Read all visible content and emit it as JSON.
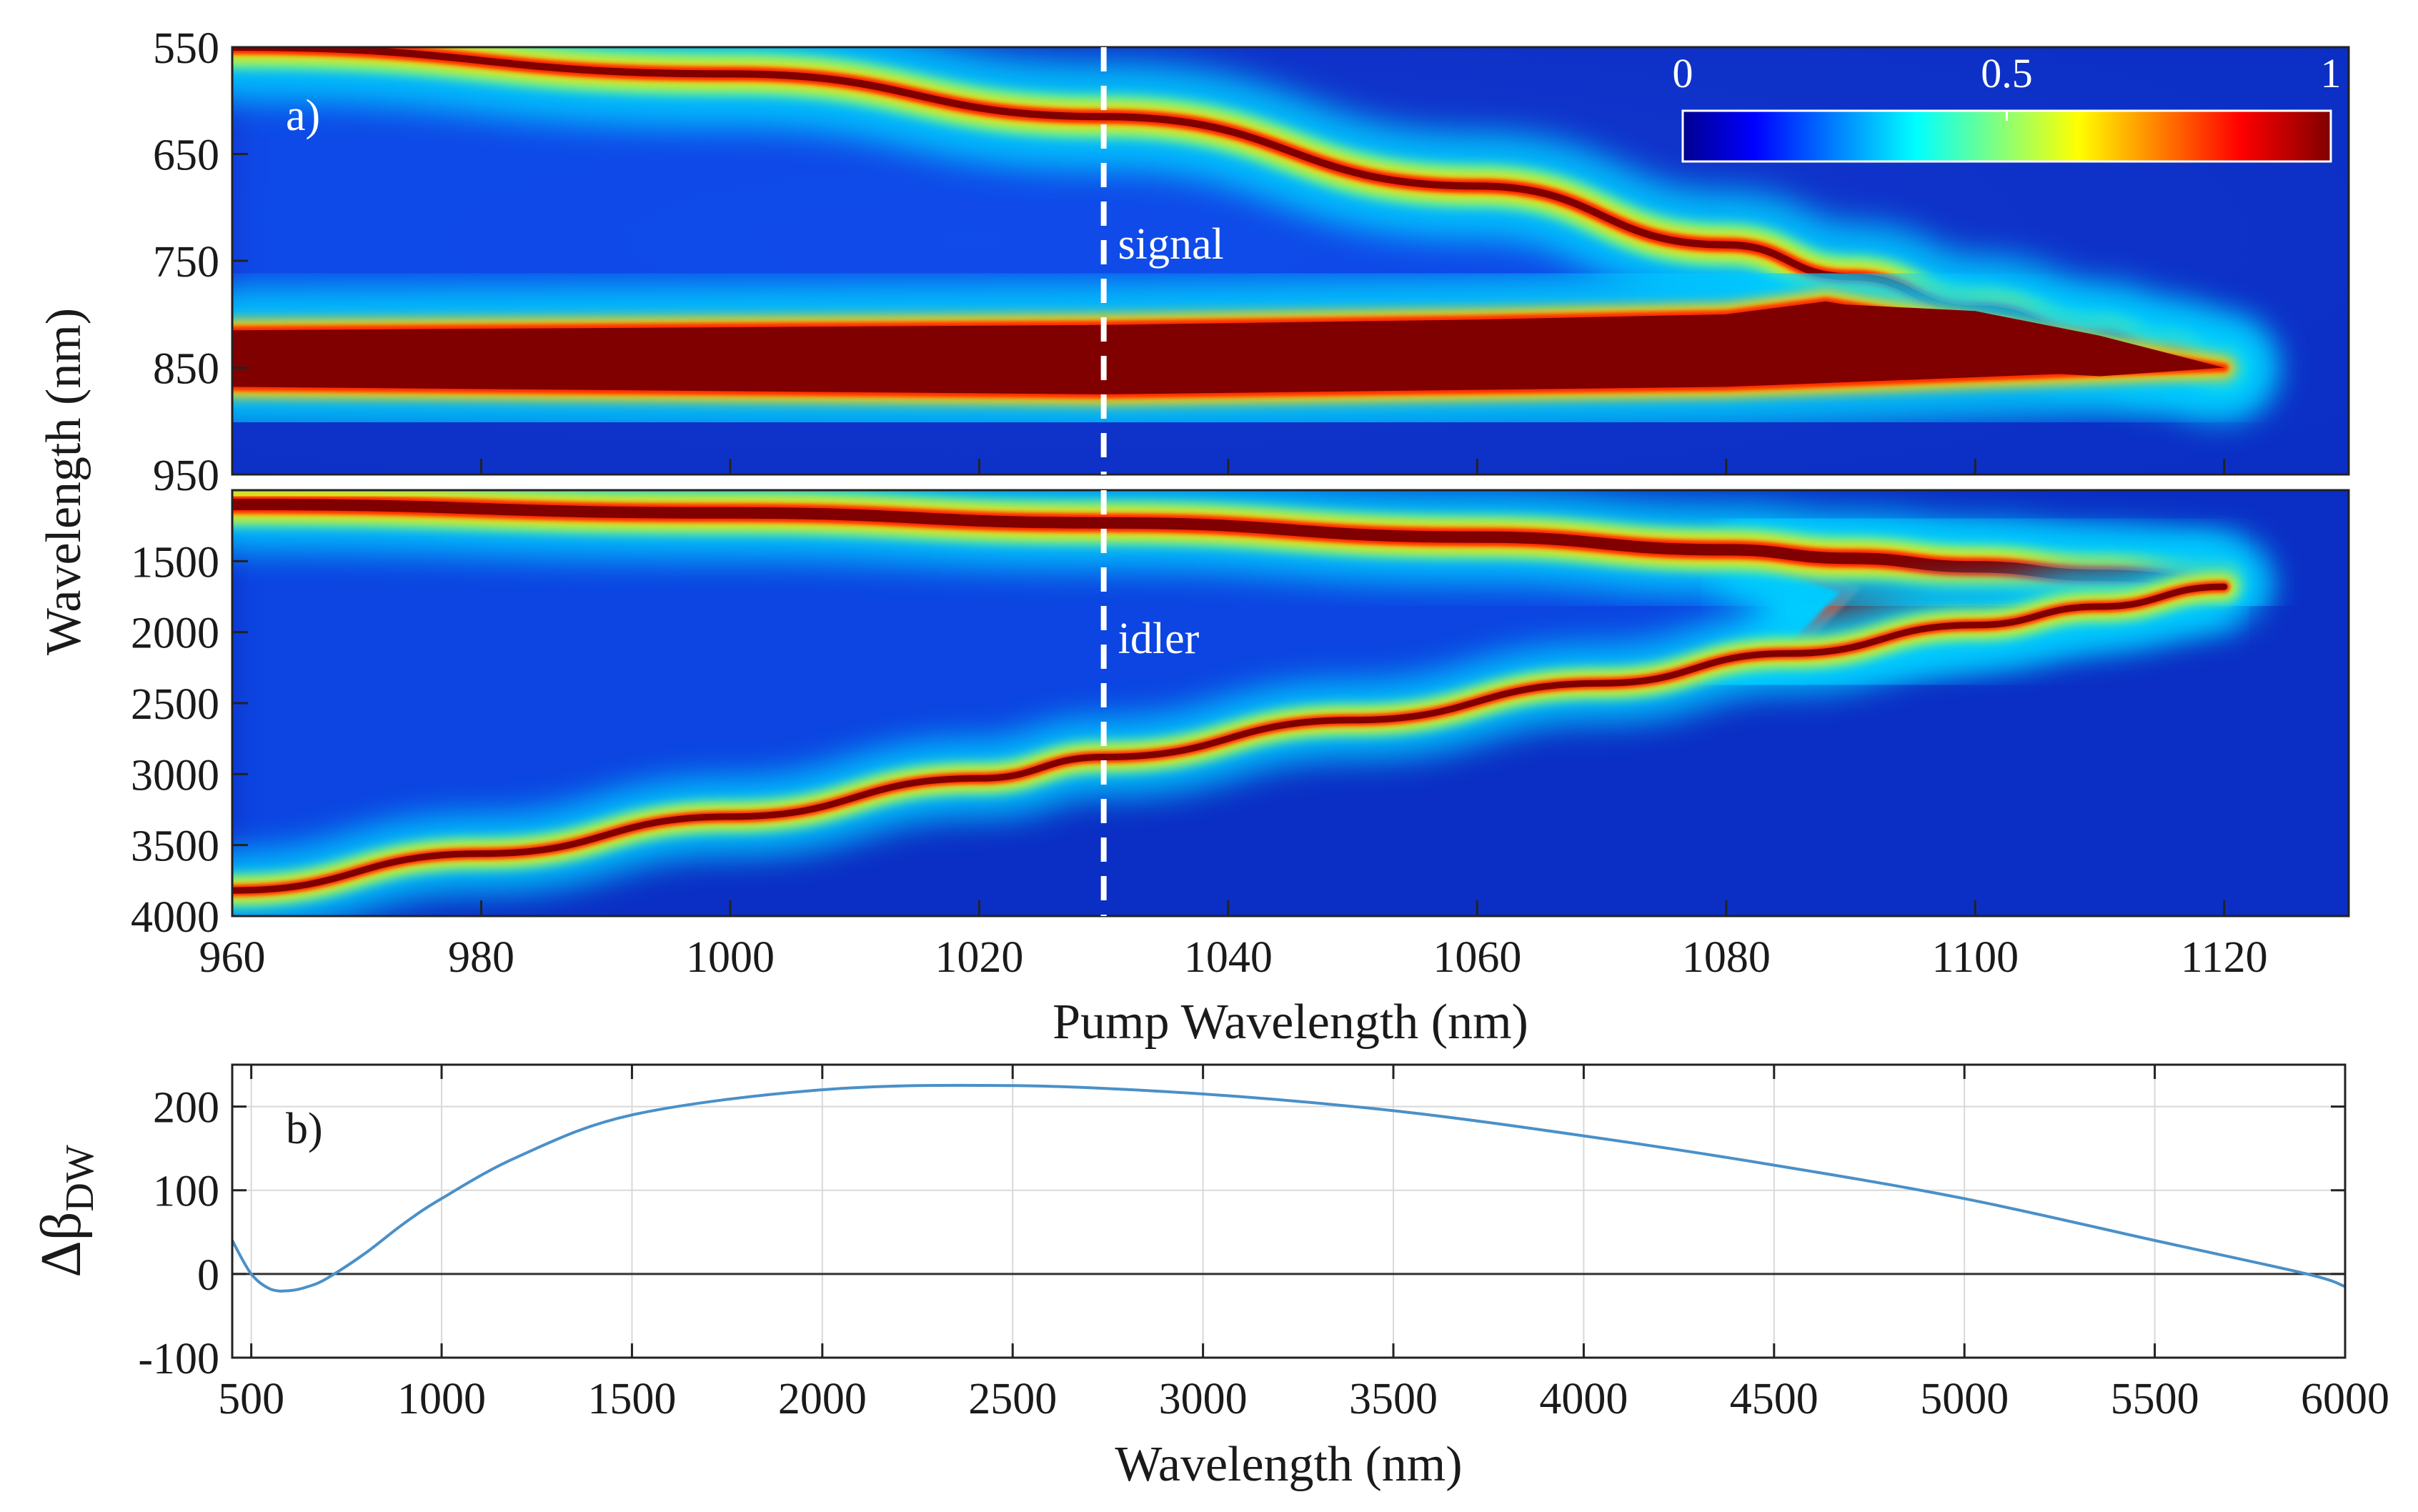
{
  "chart_data": [
    {
      "type": "heatmap",
      "panel_label": "a)",
      "xlabel": "Pump Wavelength (nm)",
      "ylabel": "Wavelength (nm)",
      "xlim": [
        960,
        1130
      ],
      "x_ticks": [
        "960",
        "980",
        "1000",
        "1020",
        "1040",
        "1060",
        "1080",
        "1100",
        "1120"
      ],
      "colorbar": {
        "range": [
          0,
          1
        ],
        "ticks": [
          "0",
          "0.5",
          "1"
        ],
        "colormap": "jet",
        "placement": "top-right"
      },
      "marker_line": {
        "pump_wavelength": 1030,
        "style": "dashed",
        "color": "#ffffff"
      },
      "subplots": [
        {
          "name": "signal",
          "annotation": "signal",
          "ylim": [
            550,
            950
          ],
          "y_ticks": [
            "550",
            "650",
            "750",
            "850",
            "950"
          ],
          "bands": [
            {
              "role": "outer_branch",
              "pump": [
                960,
                1000,
                1030,
                1060,
                1080,
                1090,
                1100,
                1110,
                1115,
                1120
              ],
              "wavelength": [
                550,
                575,
                615,
                680,
                735,
                765,
                795,
                820,
                835,
                850
              ]
            },
            {
              "role": "inner_branch",
              "pump": [
                960,
                1030,
                1060,
                1080,
                1088
              ],
              "wavelength": [
                815,
                810,
                805,
                800,
                788
              ]
            },
            {
              "role": "lower_edge",
              "pump": [
                960,
                1030,
                1080,
                1120
              ],
              "wavelength": [
                868,
                875,
                868,
                850
              ]
            }
          ]
        },
        {
          "name": "idler",
          "annotation": "idler",
          "ylim": [
            1000,
            4000
          ],
          "y_ticks": [
            "1500",
            "2000",
            "2500",
            "3000",
            "3500",
            "4000"
          ],
          "bands": [
            {
              "role": "upper_branch",
              "pump": [
                960,
                1000,
                1030,
                1060,
                1080,
                1090,
                1100,
                1110,
                1120
              ],
              "wavelength": [
                1100,
                1160,
                1230,
                1330,
                1420,
                1480,
                1540,
                1600,
                1650
              ]
            },
            {
              "role": "lower_branch",
              "pump": [
                960,
                980,
                1000,
                1020,
                1030,
                1050,
                1070,
                1085,
                1100,
                1110,
                1120
              ],
              "wavelength": [
                3820,
                3560,
                3300,
                3030,
                2880,
                2620,
                2360,
                2150,
                1950,
                1820,
                1680
              ]
            }
          ]
        }
      ]
    },
    {
      "type": "line",
      "panel_label": "b)",
      "xlabel": "Wavelength (nm)",
      "ylabel": "Δβ",
      "ylabel_subscript": "DW",
      "xlim": [
        450,
        6000
      ],
      "ylim": [
        -100,
        250
      ],
      "x_ticks": [
        "500",
        "1000",
        "1500",
        "2000",
        "2500",
        "3000",
        "3500",
        "4000",
        "4500",
        "5000",
        "5500",
        "6000"
      ],
      "y_ticks": [
        "200",
        "100",
        "0",
        "-100"
      ],
      "grid": true,
      "zero_line": true,
      "series": [
        {
          "color": "#4a90c8",
          "x": [
            450,
            500,
            550,
            600,
            650,
            700,
            800,
            900,
            1000,
            1200,
            1500,
            2000,
            2500,
            3000,
            3500,
            4000,
            4500,
            5000,
            5500,
            5900,
            6000
          ],
          "y": [
            40,
            0,
            -18,
            -20,
            -15,
            -5,
            25,
            60,
            90,
            140,
            190,
            220,
            225,
            215,
            195,
            165,
            130,
            90,
            40,
            0,
            -15
          ]
        }
      ]
    }
  ]
}
